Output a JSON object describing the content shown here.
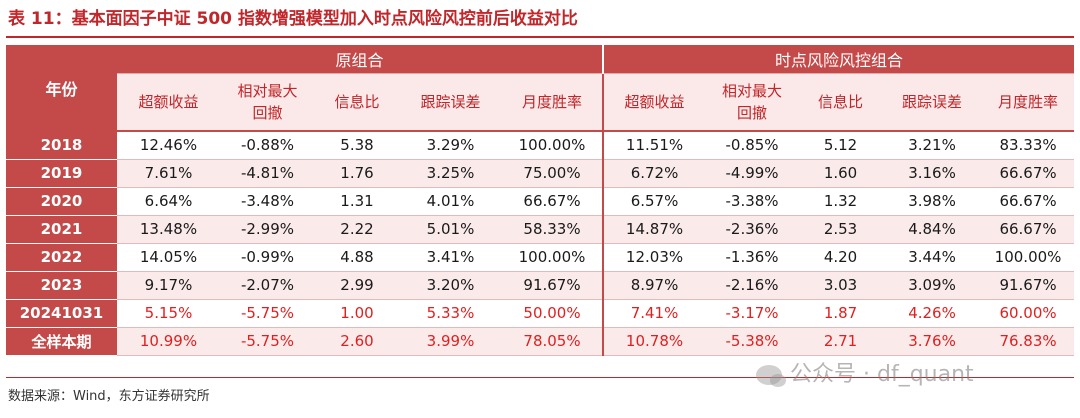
{
  "title": "表 11：基本面因子中证 500 指数增强模型加入时点风险风控前后收益对比",
  "header": {
    "year_label": "年份",
    "group_original": "原组合",
    "group_risk": "时点风险风控组合",
    "columns": [
      "超额收益",
      "相对最大回撤",
      "信息比",
      "跟踪误差",
      "月度胜率"
    ]
  },
  "rows": [
    {
      "year": "2018",
      "orig": [
        "12.46%",
        "-0.88%",
        "5.38",
        "3.29%",
        "100.00%"
      ],
      "risk": [
        "11.51%",
        "-0.85%",
        "5.12",
        "3.21%",
        "83.33%"
      ]
    },
    {
      "year": "2019",
      "orig": [
        "7.61%",
        "-4.81%",
        "1.76",
        "3.25%",
        "75.00%"
      ],
      "risk": [
        "6.72%",
        "-4.99%",
        "1.60",
        "3.16%",
        "66.67%"
      ]
    },
    {
      "year": "2020",
      "orig": [
        "6.64%",
        "-3.48%",
        "1.31",
        "4.01%",
        "66.67%"
      ],
      "risk": [
        "6.57%",
        "-3.38%",
        "1.32",
        "3.98%",
        "66.67%"
      ]
    },
    {
      "year": "2021",
      "orig": [
        "13.48%",
        "-2.99%",
        "2.22",
        "5.01%",
        "58.33%"
      ],
      "risk": [
        "14.87%",
        "-2.36%",
        "2.53",
        "4.84%",
        "66.67%"
      ]
    },
    {
      "year": "2022",
      "orig": [
        "14.05%",
        "-0.99%",
        "4.88",
        "3.41%",
        "100.00%"
      ],
      "risk": [
        "12.03%",
        "-1.36%",
        "4.20",
        "3.44%",
        "100.00%"
      ]
    },
    {
      "year": "2023",
      "orig": [
        "9.17%",
        "-2.07%",
        "2.99",
        "3.20%",
        "91.67%"
      ],
      "risk": [
        "8.97%",
        "-2.16%",
        "3.03",
        "3.09%",
        "91.67%"
      ]
    },
    {
      "year": "20241031",
      "orig": [
        "5.15%",
        "-5.75%",
        "1.00",
        "5.33%",
        "50.00%"
      ],
      "risk": [
        "7.41%",
        "-3.17%",
        "1.87",
        "4.26%",
        "60.00%"
      ]
    },
    {
      "year": "全样本期",
      "orig": [
        "10.99%",
        "-5.75%",
        "2.60",
        "3.99%",
        "78.05%"
      ],
      "risk": [
        "10.78%",
        "-5.38%",
        "2.71",
        "3.76%",
        "76.83%"
      ]
    }
  ],
  "source": "数据来源：Wind，东方证券研究所",
  "watermark": "公众号 · df_quant",
  "colors": {
    "accent": "#c44a4a",
    "highlight_text": "#e02020",
    "row_alt": "#faeaea"
  }
}
